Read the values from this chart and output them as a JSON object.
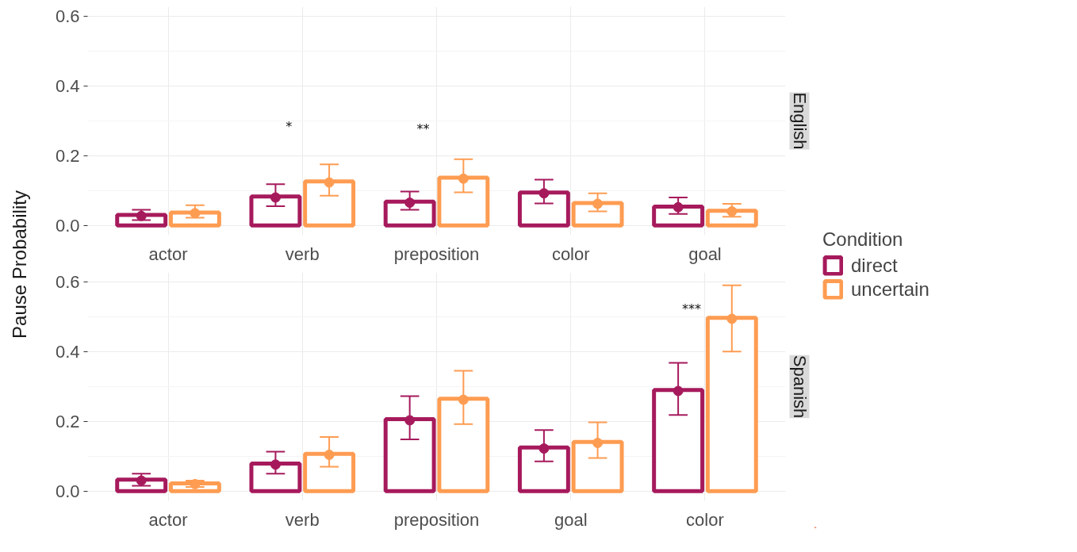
{
  "chart_data": [
    {
      "type": "bar",
      "title": "English",
      "ylabel": "Pause Probability",
      "legend_title": "Condition",
      "legend": "right",
      "grid": true,
      "marker": "circle",
      "categories": [
        "actor",
        "verb",
        "preposition",
        "color",
        "goal"
      ],
      "ylim": [
        -0.028,
        0.627
      ],
      "yticks": [
        {
          "value": 0,
          "label": "0.0"
        },
        0.2,
        0.4,
        0.6
      ],
      "series": [
        {
          "name": "direct",
          "color": "#a61a5c",
          "values": [
            0.03,
            0.083,
            0.068,
            0.094,
            0.054
          ]
        },
        {
          "name": "uncertain",
          "color": "#fe9c52",
          "values": [
            0.037,
            0.126,
            0.137,
            0.064,
            0.042
          ]
        },
        {
          "type": "scatter",
          "color": "#a61a5c",
          "x": [
            "actor",
            "verb",
            "preposition",
            "color",
            "goal"
          ],
          "values": [
            0.027,
            0.08,
            0.065,
            0.092,
            0.052
          ],
          "errors": [
            [
              0.015,
              0.045
            ],
            [
              0.055,
              0.118
            ],
            [
              0.045,
              0.097
            ],
            [
              0.063,
              0.131
            ],
            [
              0.033,
              0.08
            ]
          ]
        },
        {
          "type": "scatter",
          "color": "#fe9c52",
          "x": [
            "actor",
            "verb",
            "preposition",
            "color",
            "goal"
          ],
          "values": [
            0.035,
            0.123,
            0.134,
            0.062,
            0.04
          ],
          "errors": [
            [
              0.022,
              0.058
            ],
            [
              0.085,
              0.175
            ],
            [
              0.095,
              0.19
            ],
            [
              0.04,
              0.092
            ],
            [
              0.025,
              0.062
            ]
          ]
        }
      ],
      "annotations": [
        "*",
        "**"
      ]
    },
    {
      "type": "bar",
      "title": "Spanish",
      "grid": true,
      "marker": "circle",
      "categories": [
        "actor",
        "verb",
        "preposition",
        "goal",
        "color"
      ],
      "ylim": [
        -0.028,
        0.627
      ],
      "yticks": [
        {
          "value": 0,
          "label": "0.0"
        },
        0.2,
        0.4,
        0.6
      ],
      "series": [
        {
          "color": "#a61a5c",
          "values": [
            0.033,
            0.079,
            0.206,
            0.125,
            0.29
          ]
        },
        {
          "color": "#fe9c52",
          "values": [
            0.022,
            0.107,
            0.265,
            0.141,
            0.497
          ]
        },
        {
          "type": "scatter",
          "color": "#a61a5c",
          "x": [
            "actor",
            "verb",
            "preposition",
            "goal",
            "color"
          ],
          "values": [
            0.03,
            0.076,
            0.203,
            0.122,
            0.287
          ],
          "errors": [
            [
              0.015,
              0.05
            ],
            [
              0.05,
              0.113
            ],
            [
              0.148,
              0.272
            ],
            [
              0.085,
              0.175
            ],
            [
              0.218,
              0.368
            ]
          ]
        },
        {
          "type": "scatter",
          "color": "#fe9c52",
          "x": [
            "actor",
            "verb",
            "preposition",
            "goal",
            "color"
          ],
          "values": [
            0.02,
            0.104,
            0.262,
            0.138,
            0.494
          ],
          "errors": [
            [
              0.012,
              0.03
            ],
            [
              0.07,
              0.155
            ],
            [
              0.192,
              0.345
            ],
            [
              0.095,
              0.197
            ],
            [
              0.4,
              0.59
            ]
          ]
        }
      ],
      "annotations": [
        "***"
      ]
    }
  ]
}
